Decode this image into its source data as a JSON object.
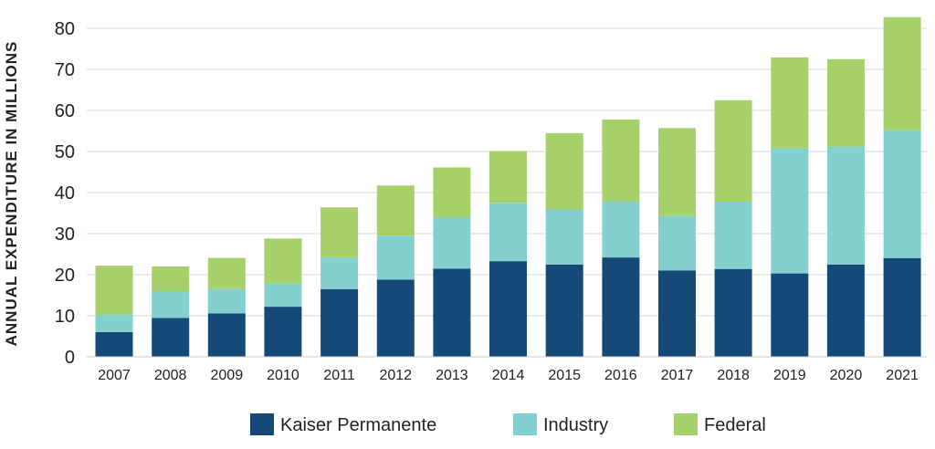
{
  "chart_data": {
    "type": "bar",
    "stacked": true,
    "categories": [
      "2007",
      "2008",
      "2009",
      "2010",
      "2011",
      "2012",
      "2013",
      "2014",
      "2015",
      "2016",
      "2017",
      "2018",
      "2019",
      "2020",
      "2021"
    ],
    "series": [
      {
        "name": "Kaiser Permanente",
        "color": "#154a78",
        "values": [
          6.0,
          9.5,
          10.6,
          12.2,
          16.5,
          18.8,
          21.5,
          23.3,
          22.5,
          24.2,
          21.0,
          21.4,
          20.3,
          22.5,
          24.0
        ]
      },
      {
        "name": "Industry",
        "color": "#84d0cf",
        "values": [
          4.3,
          6.5,
          5.9,
          5.6,
          7.7,
          10.7,
          12.5,
          14.2,
          13.4,
          13.6,
          13.3,
          16.4,
          30.5,
          28.7,
          31.2
        ]
      },
      {
        "name": "Federal",
        "color": "#a6d06a",
        "values": [
          11.9,
          6.0,
          7.6,
          11.0,
          12.2,
          12.2,
          12.1,
          12.6,
          18.6,
          20.0,
          21.4,
          24.7,
          22.1,
          21.3,
          27.5
        ]
      }
    ],
    "ylabel": "ANNUAL EXPENDITURE IN MILLIONS",
    "xlabel": "",
    "ylim": [
      0,
      85
    ],
    "yticks": [
      0,
      10,
      20,
      30,
      40,
      50,
      60,
      70,
      80
    ],
    "grid": true,
    "legend_position": "bottom-center"
  }
}
